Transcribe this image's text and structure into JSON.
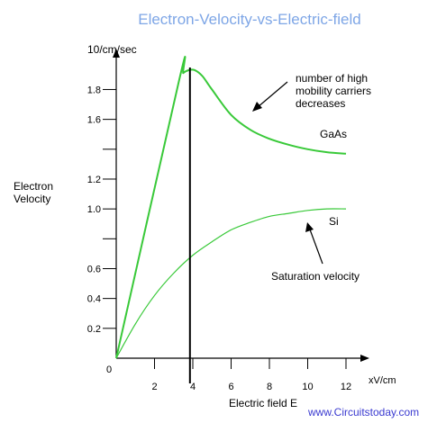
{
  "colors": {
    "title": "#7ea6e6",
    "gaas_curve": "#39c939",
    "si_curve": "#39c939",
    "site": "#3a3ad0",
    "axes": "#000000"
  },
  "chart_data": {
    "type": "line",
    "title": "Electron-Velocity-vs-Electric-field",
    "y_unit_label": "10/cm/sec",
    "ylabel": [
      "Electron",
      "Velocity"
    ],
    "xlabel": "Electric field E",
    "x_unit_label": "xV/cm",
    "origin_label": "0",
    "xlim": [
      0,
      13.5
    ],
    "ylim": [
      0,
      2.05
    ],
    "x_ticks": [
      2,
      4,
      6,
      8,
      10,
      12
    ],
    "x_tick_labels": [
      "2",
      "4",
      "6",
      "8",
      "10",
      "12"
    ],
    "y_ticks": [
      0.2,
      0.4,
      0.6,
      0.8,
      1.0,
      1.2,
      1.4,
      1.6,
      1.8
    ],
    "y_tick_labels": [
      "0.2",
      "0.4",
      "0.6",
      "",
      "1.0",
      "1.2",
      "",
      "1.6",
      "1.8"
    ],
    "grid": false,
    "series": [
      {
        "name": "GaAs",
        "x": [
          0,
          3.3,
          3.5,
          3.8,
          4.1,
          4.5,
          5.0,
          6.0,
          7.0,
          8.0,
          9.0,
          10.0,
          11.0,
          12.0
        ],
        "y": [
          0,
          1.87,
          1.91,
          1.93,
          1.93,
          1.89,
          1.8,
          1.63,
          1.53,
          1.47,
          1.43,
          1.4,
          1.38,
          1.37
        ]
      },
      {
        "name": "Si",
        "x": [
          0,
          1,
          2,
          3,
          4,
          5,
          6,
          7,
          8,
          9,
          10,
          11,
          12
        ],
        "y": [
          0,
          0.23,
          0.42,
          0.57,
          0.69,
          0.78,
          0.86,
          0.91,
          0.95,
          0.97,
          0.99,
          1.0,
          1.0
        ]
      }
    ],
    "vertical_line_x": 3.85,
    "annotations": [
      "number of high",
      "mobility carriers",
      "decreases",
      "Saturation velocity"
    ]
  },
  "footer": {
    "site": "www.Circuitstoday.com"
  }
}
